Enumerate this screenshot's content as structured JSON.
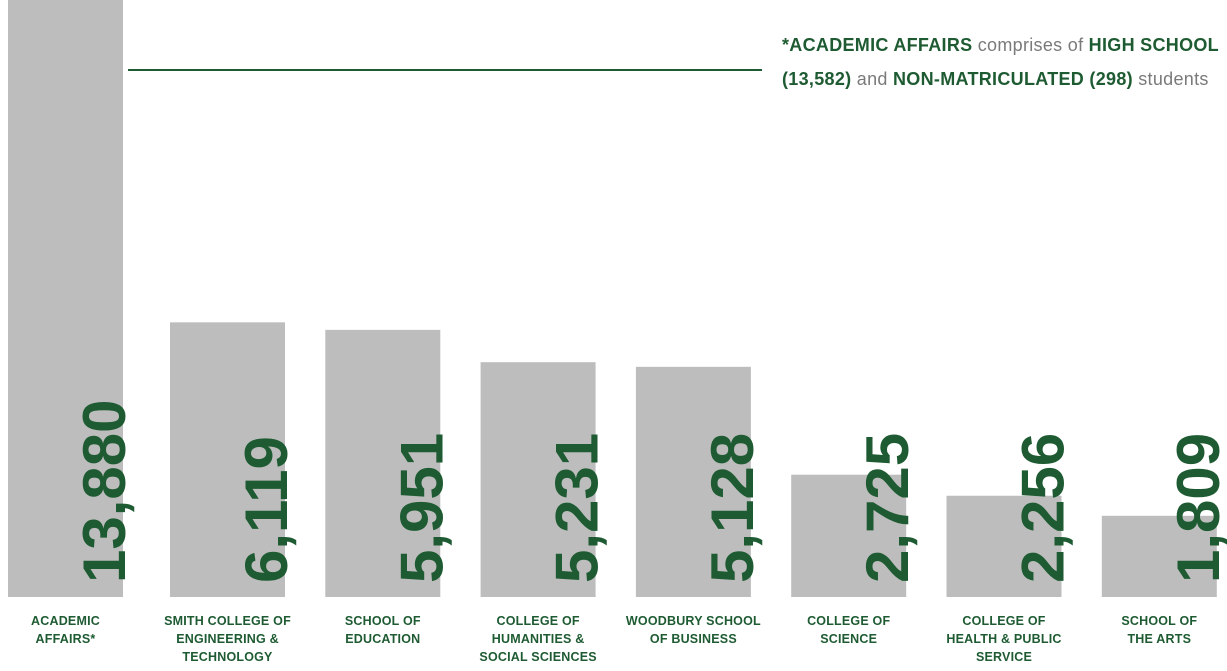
{
  "chart_data": {
    "type": "bar",
    "categories": [
      "ACADEMIC\nAFFAIRS*",
      "SMITH COLLEGE OF\nENGINEERING &\nTECHNOLOGY",
      "SCHOOL OF\nEDUCATION",
      "COLLEGE OF\nHUMANITIES &\nSOCIAL SCIENCES",
      "WOODBURY SCHOOL\nOF BUSINESS",
      "COLLEGE OF\nSCIENCE",
      "COLLEGE OF\nHEALTH & PUBLIC\nSERVICE",
      "SCHOOL OF\nTHE ARTS"
    ],
    "values": [
      13880,
      6119,
      5951,
      5231,
      5128,
      2725,
      2256,
      1809
    ],
    "value_labels": [
      "13,880",
      "6,119",
      "5,951",
      "5,231",
      "5,128",
      "2,725",
      "2,256",
      "1,809"
    ],
    "color": "#bdbdbd",
    "label_color": "#1e5b32",
    "ylim": [
      0,
      13300
    ],
    "annotation": [
      {
        "text": "*ACADEMIC AFFAIRS",
        "bold": true
      },
      {
        "text": " comprises of ",
        "bold": false
      },
      {
        "text": "HIGH SCHOOL (13,582)",
        "bold": true
      },
      {
        "text": " and ",
        "bold": false
      },
      {
        "text": "NON-MATRICULATED (298)",
        "bold": true
      },
      {
        "text": " students",
        "bold": false
      }
    ]
  }
}
